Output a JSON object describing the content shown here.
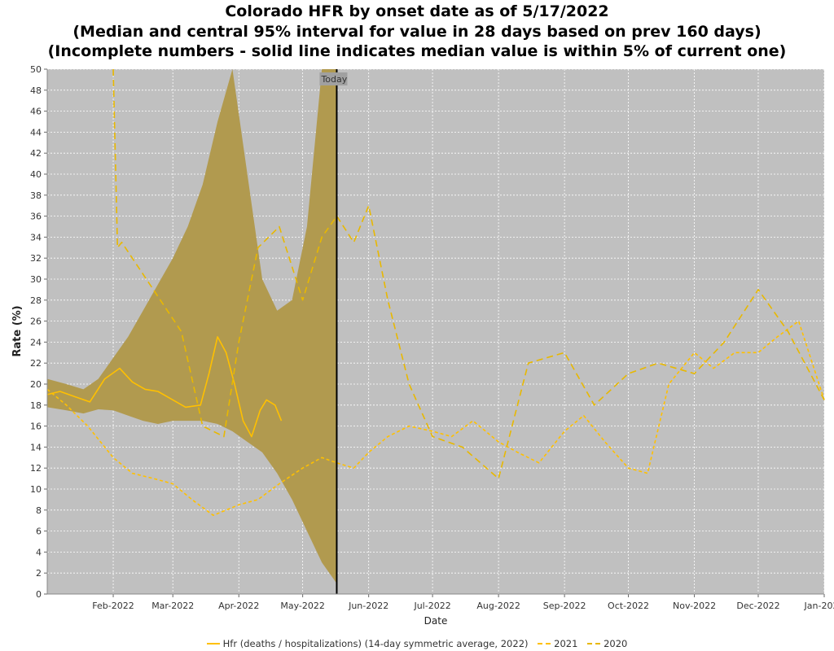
{
  "title_lines": [
    "Colorado HFR by onset date as of 5/17/2022",
    "(Median and central 95% interval for value in 28 days based on prev 160 days)",
    "(Incomplete numbers - solid line indicates median value is within 5% of current one)"
  ],
  "colors": {
    "plot_bg": "#c0c0c0",
    "band": "#b19a4f",
    "series_2022": "#ffc000",
    "series_2021": "#ffc000",
    "series_2020": "#e8b800",
    "today_line": "#000000",
    "grid": "#ffffff"
  },
  "chart_data": {
    "type": "line",
    "title": "Colorado HFR by onset date as of 5/17/2022",
    "xlabel": "Date",
    "ylabel": "Rate (%)",
    "x_range": [
      "2022-01-01",
      "2023-01-01"
    ],
    "ylim": [
      0,
      50
    ],
    "y_ticks": [
      0,
      2,
      4,
      6,
      8,
      10,
      12,
      14,
      16,
      18,
      20,
      22,
      24,
      26,
      28,
      30,
      32,
      34,
      36,
      38,
      40,
      42,
      44,
      46,
      48,
      50
    ],
    "x_ticks": [
      {
        "date": "2022-02-01",
        "label": "Feb-2022"
      },
      {
        "date": "2022-03-01",
        "label": "Mar-2022"
      },
      {
        "date": "2022-04-01",
        "label": "Apr-2022"
      },
      {
        "date": "2022-05-01",
        "label": "May-2022"
      },
      {
        "date": "2022-06-01",
        "label": "Jun-2022"
      },
      {
        "date": "2022-07-01",
        "label": "Jul-2022"
      },
      {
        "date": "2022-08-01",
        "label": "Aug-2022"
      },
      {
        "date": "2022-09-01",
        "label": "Sep-2022"
      },
      {
        "date": "2022-10-01",
        "label": "Oct-2022"
      },
      {
        "date": "2022-11-01",
        "label": "Nov-2022"
      },
      {
        "date": "2022-12-01",
        "label": "Dec-2022"
      },
      {
        "date": "2023-01-01",
        "label": "Jan-2023"
      }
    ],
    "grid": true,
    "legend_position": "bottom",
    "annotation": {
      "date": "2022-05-17",
      "label": "Today"
    },
    "band": {
      "name": "central 95% interval",
      "x": [
        "2022-01-01",
        "2022-01-10",
        "2022-01-18",
        "2022-01-25",
        "2022-02-01",
        "2022-02-08",
        "2022-02-15",
        "2022-02-22",
        "2022-03-01",
        "2022-03-08",
        "2022-03-15",
        "2022-03-22",
        "2022-03-29",
        "2022-04-05",
        "2022-04-12",
        "2022-04-19",
        "2022-04-26",
        "2022-05-03",
        "2022-05-10",
        "2022-05-17"
      ],
      "lower": [
        17.8,
        17.5,
        17.2,
        17.6,
        17.5,
        17.0,
        16.5,
        16.2,
        16.5,
        16.5,
        16.5,
        16.2,
        15.5,
        14.5,
        13.5,
        11.5,
        9.0,
        6.0,
        3.0,
        1.0
      ],
      "upper": [
        20.5,
        20.0,
        19.5,
        20.5,
        22.5,
        24.5,
        27.0,
        29.5,
        32.0,
        35.0,
        39.0,
        45.0,
        50.0,
        40.0,
        30.0,
        27.0,
        28.0,
        35.0,
        50.0,
        50.0
      ]
    },
    "series": [
      {
        "name": "Hfr (deaths / hospitalizations) (14-day symmetric average, 2022)",
        "style": "solid",
        "x": [
          "2022-01-01",
          "2022-01-07",
          "2022-01-14",
          "2022-01-21",
          "2022-01-28",
          "2022-02-04",
          "2022-02-10",
          "2022-02-16",
          "2022-02-22",
          "2022-03-01",
          "2022-03-07",
          "2022-03-14",
          "2022-03-18",
          "2022-03-22",
          "2022-03-26",
          "2022-03-30",
          "2022-04-03",
          "2022-04-07",
          "2022-04-11",
          "2022-04-14",
          "2022-04-18",
          "2022-04-21"
        ],
        "y": [
          19.0,
          19.3,
          18.8,
          18.3,
          20.5,
          21.5,
          20.2,
          19.5,
          19.3,
          18.5,
          17.8,
          18.0,
          21.0,
          24.5,
          23.0,
          20.0,
          16.5,
          15.0,
          17.5,
          18.5,
          18.0,
          16.5
        ]
      },
      {
        "name": "2021",
        "style": "dashed-short",
        "x": [
          "2022-01-01",
          "2022-01-10",
          "2022-01-20",
          "2022-02-01",
          "2022-02-10",
          "2022-02-20",
          "2022-03-01",
          "2022-03-10",
          "2022-03-20",
          "2022-04-01",
          "2022-04-10",
          "2022-04-20",
          "2022-05-01",
          "2022-05-10",
          "2022-05-17",
          "2022-05-25",
          "2022-06-01",
          "2022-06-10",
          "2022-06-20",
          "2022-07-01",
          "2022-07-10",
          "2022-07-20",
          "2022-08-01",
          "2022-08-10",
          "2022-08-20",
          "2022-09-01",
          "2022-09-10",
          "2022-09-20",
          "2022-10-01",
          "2022-10-10",
          "2022-10-20",
          "2022-11-01",
          "2022-11-10",
          "2022-11-20",
          "2022-12-01",
          "2022-12-10",
          "2022-12-20",
          "2023-01-01"
        ],
        "y": [
          19.5,
          18.0,
          16.0,
          13.0,
          11.5,
          11.0,
          10.5,
          9.0,
          7.5,
          8.5,
          9.0,
          10.5,
          12.0,
          13.0,
          12.5,
          12.0,
          13.5,
          15.0,
          16.0,
          15.5,
          15.0,
          16.5,
          14.5,
          13.5,
          12.5,
          15.5,
          17.0,
          14.5,
          12.0,
          11.5,
          20.0,
          23.0,
          21.5,
          23.0,
          23.0,
          24.5,
          26.0,
          18.5
        ]
      },
      {
        "name": "2020",
        "style": "dashed-long",
        "x": [
          "2022-02-01",
          "2022-02-03",
          "2022-02-05",
          "2022-03-05",
          "2022-03-15",
          "2022-03-25",
          "2022-04-01",
          "2022-04-10",
          "2022-04-20",
          "2022-05-01",
          "2022-05-10",
          "2022-05-17",
          "2022-05-25",
          "2022-06-01",
          "2022-06-10",
          "2022-06-20",
          "2022-07-01",
          "2022-07-15",
          "2022-08-01",
          "2022-08-15",
          "2022-09-01",
          "2022-09-15",
          "2022-10-01",
          "2022-10-15",
          "2022-11-01",
          "2022-11-15",
          "2022-12-01",
          "2022-12-15",
          "2023-01-01"
        ],
        "y": [
          50.0,
          33.0,
          33.5,
          25.0,
          16.0,
          15.0,
          24.0,
          33.0,
          35.0,
          28.0,
          34.0,
          36.0,
          33.5,
          37.0,
          28.0,
          20.0,
          15.0,
          14.0,
          11.0,
          22.0,
          23.0,
          18.0,
          21.0,
          22.0,
          21.0,
          24.0,
          29.0,
          25.0,
          18.5
        ]
      }
    ]
  }
}
